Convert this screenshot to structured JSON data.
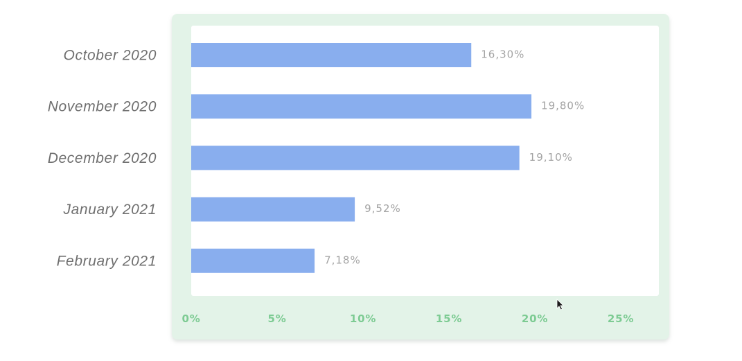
{
  "chart_data": {
    "type": "bar",
    "orientation": "horizontal",
    "categories": [
      "October 2020",
      "November 2020",
      "December 2020",
      "January 2021",
      "February 2021"
    ],
    "values": [
      16.3,
      19.8,
      19.1,
      9.52,
      7.18
    ],
    "data_labels": [
      "16,30%",
      "19,80%",
      "19,10%",
      "9,52%",
      "7,18%"
    ],
    "x_ticks": [
      "0%",
      "5%",
      "10%",
      "15%",
      "20%",
      "25%"
    ],
    "xlim": [
      0,
      27
    ],
    "title": "",
    "xlabel": "",
    "ylabel": "",
    "grid": false,
    "legend": "none"
  },
  "colors": {
    "bar": "#89aeee",
    "panel_frame": "#e3f3e8",
    "plot_bg": "#ffffff",
    "tick_text": "#7dcb93",
    "category_text": "#6f6f6f",
    "value_text": "#a3a3a3",
    "cursor": "#1a1a1a"
  },
  "icons": {
    "cursor": "mouse-pointer-icon"
  }
}
